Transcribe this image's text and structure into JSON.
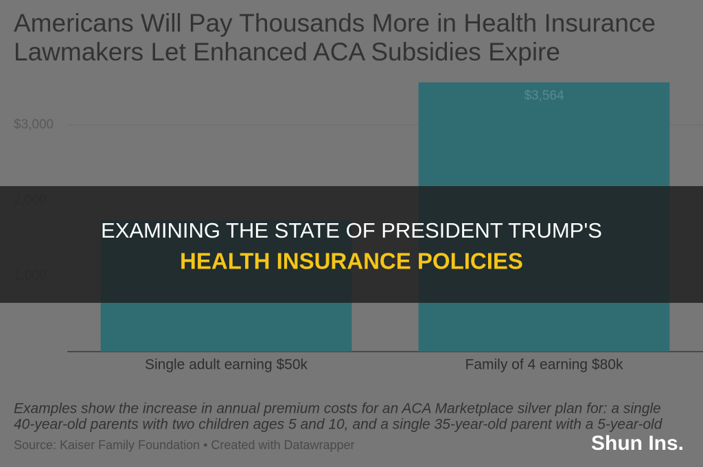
{
  "chart_data": {
    "type": "bar",
    "title_lines": [
      "Americans Will Pay Thousands More in Health Insurance",
      "Lawmakers Let Enhanced ACA Subsidies Expire"
    ],
    "categories": [
      "Single adult earning $50k",
      "Family of 4 earning $80k"
    ],
    "values": [
      1736,
      3564
    ],
    "value_labels": [
      null,
      "$3,564"
    ],
    "color": "#2f6d73",
    "ylim": [
      0,
      3600
    ],
    "yticks": [
      {
        "value": 1000,
        "label": "1,000"
      },
      {
        "value": 2000,
        "label": "2,000"
      },
      {
        "value": 3000,
        "label": "$3,000"
      }
    ],
    "grid": true,
    "notes": [
      "Examples show the increase in annual premium costs for an ACA Marketplace silver plan for: a single",
      "40-year-old parents with two children ages 5 and 10, and a single 35-year-old parent with a 5-year-old"
    ],
    "source": "Source: Kaiser Family Foundation • Created with Datawrapper"
  },
  "overlay": {
    "line1": "EXAMINING THE STATE OF PRESIDENT TRUMP'S",
    "line2": "HEALTH INSURANCE POLICIES"
  },
  "watermark": "Shun Ins."
}
